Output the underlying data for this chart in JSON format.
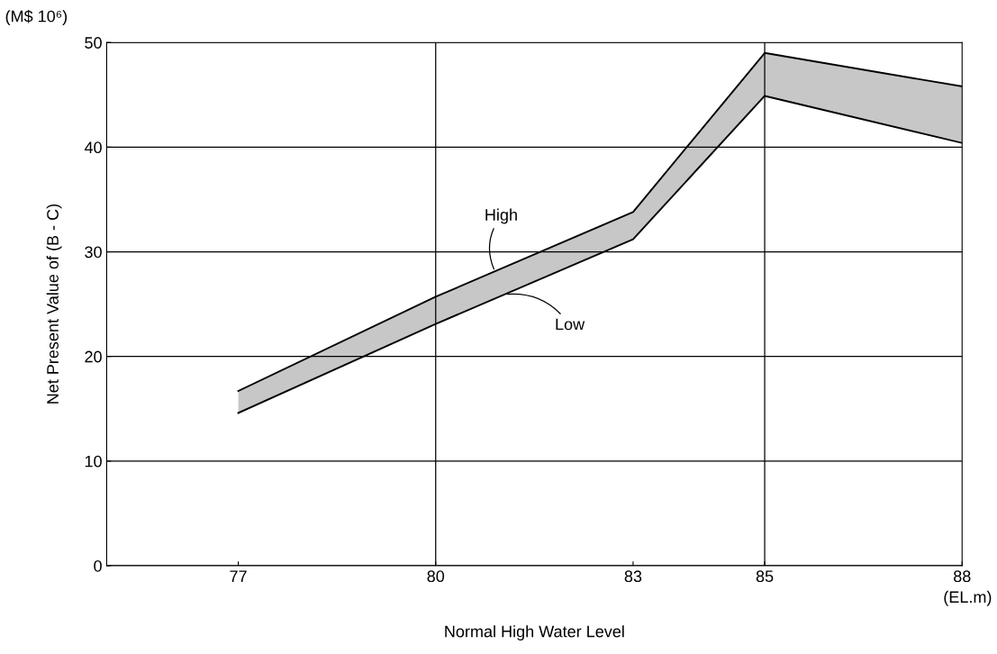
{
  "chart_data": {
    "type": "line",
    "ylabel": "Net Present Value of (B - C)",
    "xlabel": "Normal High Water Level",
    "annotations": [
      "(M$ 10⁶)",
      "(EL.m)"
    ],
    "x": [
      77,
      80,
      83,
      85,
      88
    ],
    "series": [
      {
        "name": "High",
        "color": "#000000",
        "values": [
          16.7,
          25.7,
          33.8,
          49.0,
          45.8
        ],
        "lower": [
          14.6,
          23.1,
          31.2,
          44.9,
          40.4
        ],
        "upper": [
          16.7,
          25.7,
          33.8,
          49.0,
          45.8
        ]
      },
      {
        "name": "Low",
        "color": "#000000",
        "values": [
          14.6,
          23.1,
          31.2,
          44.9,
          40.4
        ]
      }
    ],
    "xlim": [
      75,
      88
    ],
    "xticks": [
      77,
      80,
      83,
      85,
      88
    ],
    "ylim": [
      0,
      50
    ],
    "yticks": [
      0,
      10,
      20,
      30,
      40,
      50
    ],
    "grid": "y",
    "ref_lines": [
      {
        "axis": "x",
        "value": 80,
        "color": "#000000"
      },
      {
        "axis": "x",
        "value": 85,
        "color": "#000000"
      }
    ],
    "marker": "none",
    "line_style": "solid",
    "legend": false
  }
}
